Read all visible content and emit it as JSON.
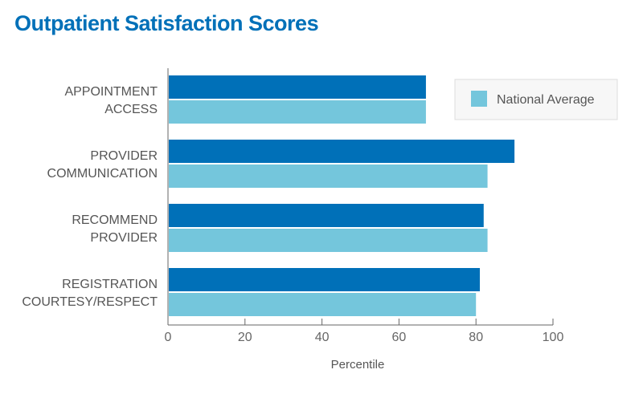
{
  "chart_data": {
    "type": "bar",
    "orientation": "horizontal",
    "title": "Outpatient Satisfaction Scores",
    "xlabel": "Percentile",
    "ylabel": "",
    "xlim": [
      0,
      100
    ],
    "xticks": [
      "0",
      "20",
      "40",
      "60",
      "80",
      "100"
    ],
    "categories": [
      [
        "APPOINTMENT",
        "ACCESS"
      ],
      [
        "PROVIDER",
        "COMMUNICATION"
      ],
      [
        "RECOMMEND",
        "PROVIDER"
      ],
      [
        "REGISTRATION",
        "COURTESY/RESPECT"
      ]
    ],
    "series": [
      {
        "values": [
          67,
          90,
          82,
          81
        ],
        "color": "#0070b8"
      },
      {
        "name": "National Average",
        "values": [
          67,
          83,
          83,
          80
        ],
        "color": "#74c6dc"
      }
    ],
    "legend": {
      "position": "top-right",
      "entries": [
        "National Average"
      ]
    },
    "grid": false
  }
}
